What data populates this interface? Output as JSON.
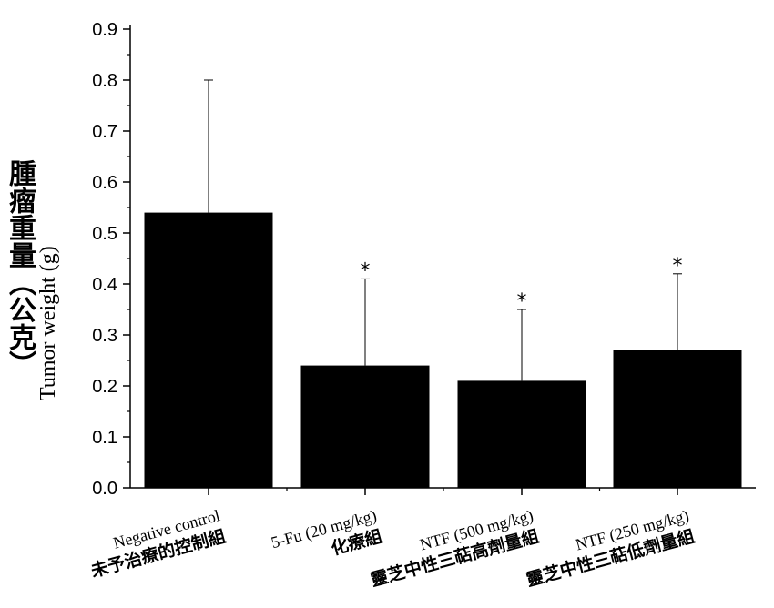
{
  "chart_data": {
    "type": "bar",
    "categories": [
      "Negative control",
      "5-Fu (20 mg/kg)",
      "NTF (500 mg/kg)",
      "NTF (250 mg/kg)"
    ],
    "categories_cn": [
      "未予治療的控制組",
      "化療組",
      "靈芝中性三萜高劑量組",
      "靈芝中性三萜低劑量組"
    ],
    "values": [
      0.54,
      0.24,
      0.21,
      0.27
    ],
    "error_upper": [
      0.8,
      0.41,
      0.35,
      0.42
    ],
    "significance": [
      "",
      "*",
      "*",
      "*"
    ],
    "ylabel": "Tumor weight (g)",
    "ylabel_cn": "腫瘤重量（公克）",
    "ylim": [
      0,
      0.9
    ],
    "yticks": [
      "0.0",
      "0.1",
      "0.2",
      "0.3",
      "0.4",
      "0.5",
      "0.6",
      "0.7",
      "0.8",
      "0.9"
    ],
    "bar_color": "#000000",
    "grid": false
  }
}
